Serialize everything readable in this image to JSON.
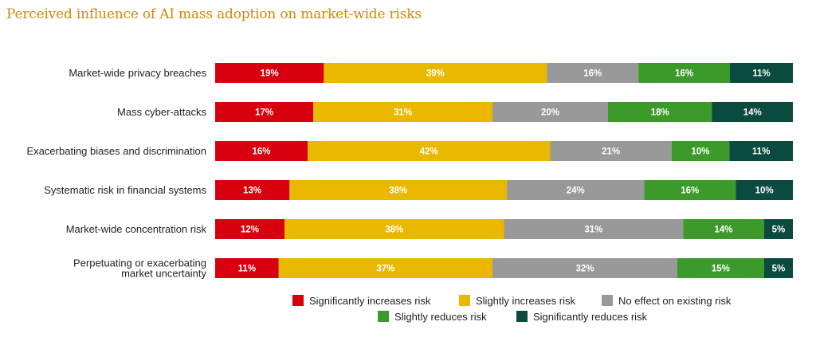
{
  "chart_data": {
    "type": "bar",
    "orientation": "horizontal",
    "stacked": true,
    "title": "Perceived influence of AI mass adoption on market-wide risks",
    "categories": [
      [
        "Market-wide privacy breaches"
      ],
      [
        "Mass cyber-attacks"
      ],
      [
        "Exacerbating biases and discrimination"
      ],
      [
        "Systematic risk in financial systems"
      ],
      [
        "Market-wide concentration risk"
      ],
      [
        "Perpetuating or exacerbating",
        "market uncertainty"
      ]
    ],
    "series": [
      {
        "name": "Significantly increases risk",
        "color": "#d8000f",
        "values": [
          19,
          17,
          16,
          13,
          12,
          11
        ]
      },
      {
        "name": "Slightly increases risk",
        "color": "#ebb800",
        "values": [
          39,
          31,
          42,
          38,
          38,
          37
        ]
      },
      {
        "name": "No effect on existing risk",
        "color": "#999999",
        "values": [
          16,
          20,
          21,
          24,
          31,
          32
        ]
      },
      {
        "name": "Slightly reduces risk",
        "color": "#3c9a2a",
        "values": [
          16,
          18,
          10,
          16,
          14,
          15
        ]
      },
      {
        "name": "Significantly reduces risk",
        "color": "#0b4a3e",
        "values": [
          11,
          14,
          11,
          10,
          5,
          5
        ]
      }
    ],
    "value_suffix": "%",
    "legend": "bottom",
    "grid": false
  }
}
